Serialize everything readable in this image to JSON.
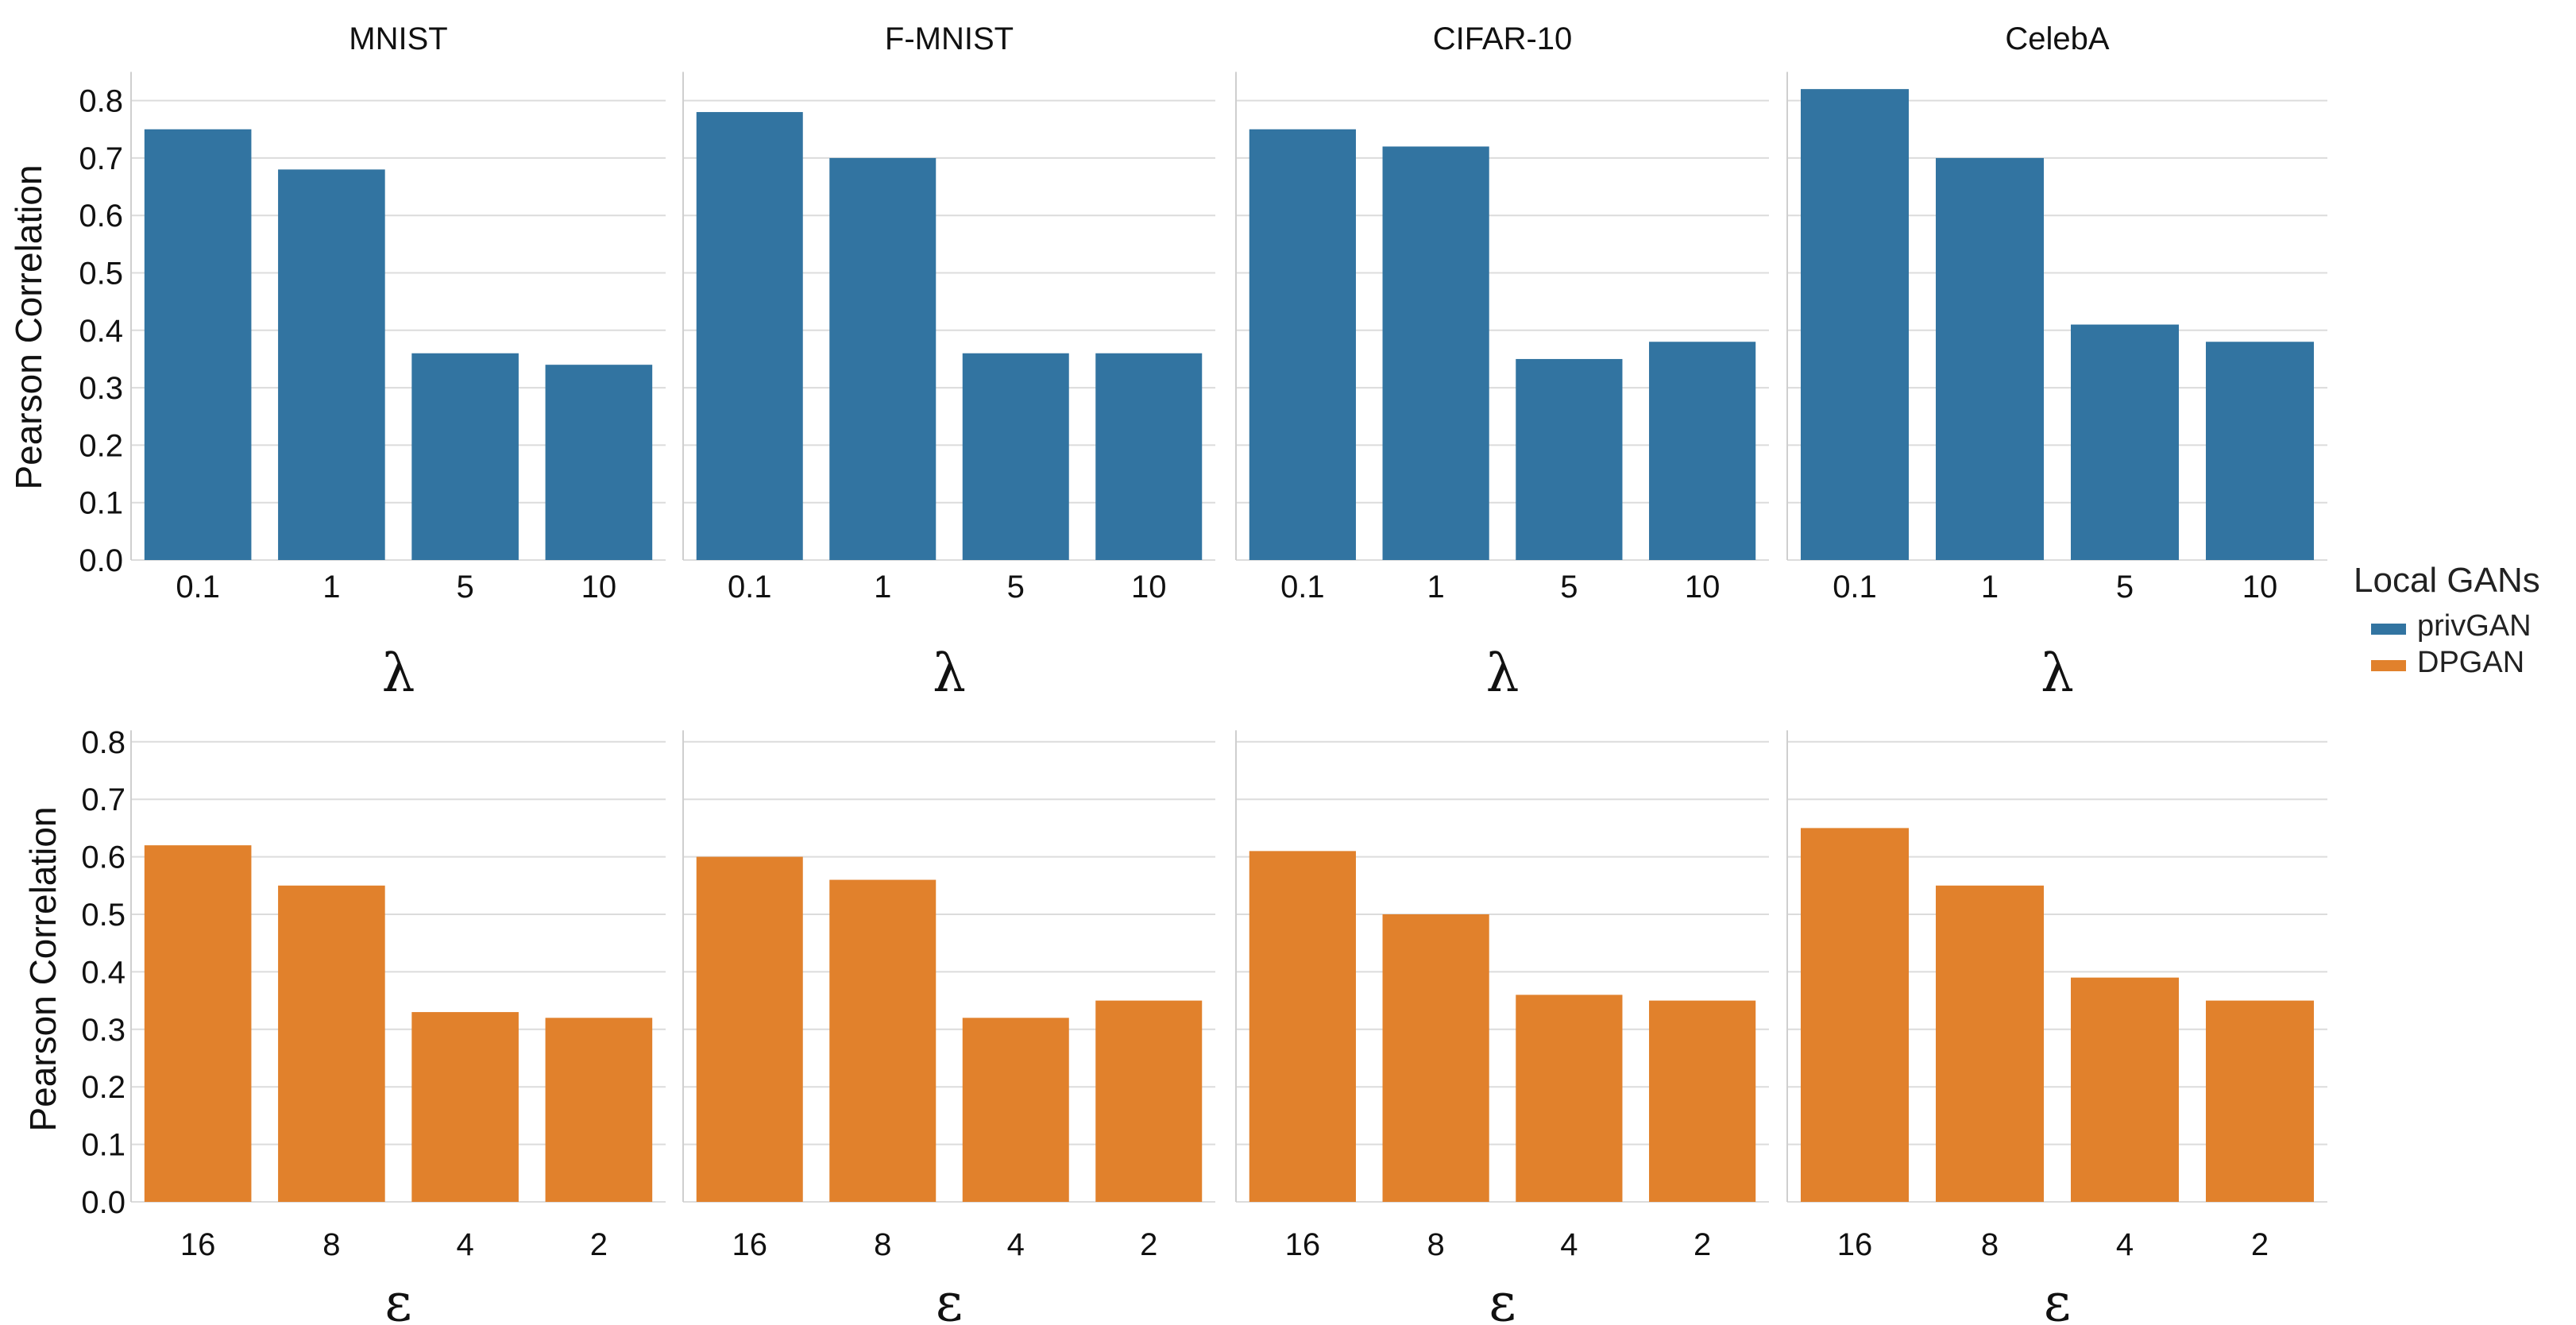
{
  "chart_data": [
    {
      "type": "bar",
      "row": "top",
      "title": "MNIST",
      "xlabel": "λ",
      "ylabel": "Pearson Correlation",
      "categories": [
        "0.1",
        "1",
        "5",
        "10"
      ],
      "series": [
        {
          "name": "privGAN",
          "values": [
            0.75,
            0.68,
            0.36,
            0.34
          ]
        }
      ],
      "ylim": [
        0,
        0.85
      ],
      "yticks": [
        "0.0",
        "0.1",
        "0.2",
        "0.3",
        "0.4",
        "0.5",
        "0.6",
        "0.7",
        "0.8"
      ],
      "grid": true
    },
    {
      "type": "bar",
      "row": "top",
      "title": "F-MNIST",
      "xlabel": "λ",
      "ylabel": "",
      "categories": [
        "0.1",
        "1",
        "5",
        "10"
      ],
      "series": [
        {
          "name": "privGAN",
          "values": [
            0.78,
            0.7,
            0.36,
            0.36
          ]
        }
      ],
      "ylim": [
        0,
        0.85
      ],
      "grid": true
    },
    {
      "type": "bar",
      "row": "top",
      "title": "CIFAR-10",
      "xlabel": "λ",
      "ylabel": "",
      "categories": [
        "0.1",
        "1",
        "5",
        "10"
      ],
      "series": [
        {
          "name": "privGAN",
          "values": [
            0.75,
            0.72,
            0.35,
            0.38
          ]
        }
      ],
      "ylim": [
        0,
        0.85
      ],
      "grid": true
    },
    {
      "type": "bar",
      "row": "top",
      "title": "CelebA",
      "xlabel": "λ",
      "ylabel": "",
      "categories": [
        "0.1",
        "1",
        "5",
        "10"
      ],
      "series": [
        {
          "name": "privGAN",
          "values": [
            0.82,
            0.7,
            0.41,
            0.38
          ]
        }
      ],
      "ylim": [
        0,
        0.85
      ],
      "grid": true
    },
    {
      "type": "bar",
      "row": "bottom",
      "title": "",
      "xlabel": "ε",
      "ylabel": "Pearson Correlation",
      "categories": [
        "16",
        "8",
        "4",
        "2"
      ],
      "series": [
        {
          "name": "DPGAN",
          "values": [
            0.62,
            0.55,
            0.33,
            0.32
          ]
        }
      ],
      "ylim": [
        0,
        0.82
      ],
      "yticks": [
        "0.0",
        "0.1",
        "0.2",
        "0.3",
        "0.4",
        "0.5",
        "0.6",
        "0.7",
        "0.8"
      ],
      "grid": true
    },
    {
      "type": "bar",
      "row": "bottom",
      "title": "",
      "xlabel": "ε",
      "ylabel": "",
      "categories": [
        "16",
        "8",
        "4",
        "2"
      ],
      "series": [
        {
          "name": "DPGAN",
          "values": [
            0.6,
            0.56,
            0.32,
            0.35
          ]
        }
      ],
      "ylim": [
        0,
        0.82
      ],
      "grid": true
    },
    {
      "type": "bar",
      "row": "bottom",
      "title": "",
      "xlabel": "ε",
      "ylabel": "",
      "categories": [
        "16",
        "8",
        "4",
        "2"
      ],
      "series": [
        {
          "name": "DPGAN",
          "values": [
            0.61,
            0.5,
            0.36,
            0.35
          ]
        }
      ],
      "ylim": [
        0,
        0.82
      ],
      "grid": true
    },
    {
      "type": "bar",
      "row": "bottom",
      "title": "",
      "xlabel": "ε",
      "ylabel": "",
      "categories": [
        "16",
        "8",
        "4",
        "2"
      ],
      "series": [
        {
          "name": "DPGAN",
          "values": [
            0.65,
            0.55,
            0.39,
            0.35
          ]
        }
      ],
      "ylim": [
        0,
        0.82
      ],
      "grid": true
    }
  ],
  "legend": {
    "title": "Local GANs",
    "placement": "right",
    "items": [
      {
        "label": "privGAN",
        "color": "#3274a1"
      },
      {
        "label": "DPGAN",
        "color": "#e1812c"
      }
    ]
  },
  "colors": {
    "privGAN": "#3274a1",
    "DPGAN": "#e1812c",
    "grid": "#dcdcdc",
    "axis": "#cfcfcf"
  }
}
